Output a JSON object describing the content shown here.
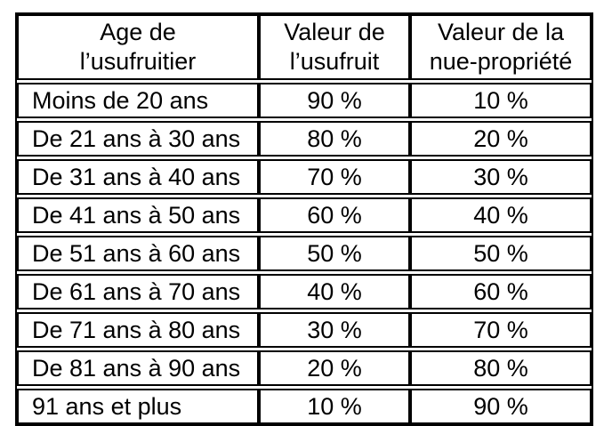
{
  "chart_data": {
    "type": "table",
    "columns": [
      {
        "label": "Age de l’usufruitier",
        "line1": "Age de",
        "line2": "l’usufruitier"
      },
      {
        "label": "Valeur de l’usufruit",
        "line1": "Valeur de",
        "line2": "l’usufruit"
      },
      {
        "label": "Valeur de la nue-propriété",
        "line1": "Valeur de la",
        "line2": "nue-propriété"
      }
    ],
    "rows": [
      [
        "Moins de 20 ans",
        "90 %",
        "10 %"
      ],
      [
        "De 21 ans à 30 ans",
        "80 %",
        "20 %"
      ],
      [
        "De 31 ans à 40 ans",
        "70 %",
        "30 %"
      ],
      [
        "De 41 ans à 50 ans",
        "60 %",
        "40 %"
      ],
      [
        "De 51 ans à 60 ans",
        "50 %",
        "50 %"
      ],
      [
        "De 61 ans à 70 ans",
        "40 %",
        "60 %"
      ],
      [
        "De 71 ans à 80 ans",
        "30 %",
        "70 %"
      ],
      [
        "De 81 ans à 90 ans",
        "20 %",
        "80 %"
      ],
      [
        "91 ans et plus",
        "10 %",
        "90 %"
      ]
    ],
    "colors": {
      "border": "#000000",
      "background": "#ffffff",
      "text": "#000000"
    },
    "layout": {
      "grid": "on",
      "header_rows": 1
    }
  }
}
